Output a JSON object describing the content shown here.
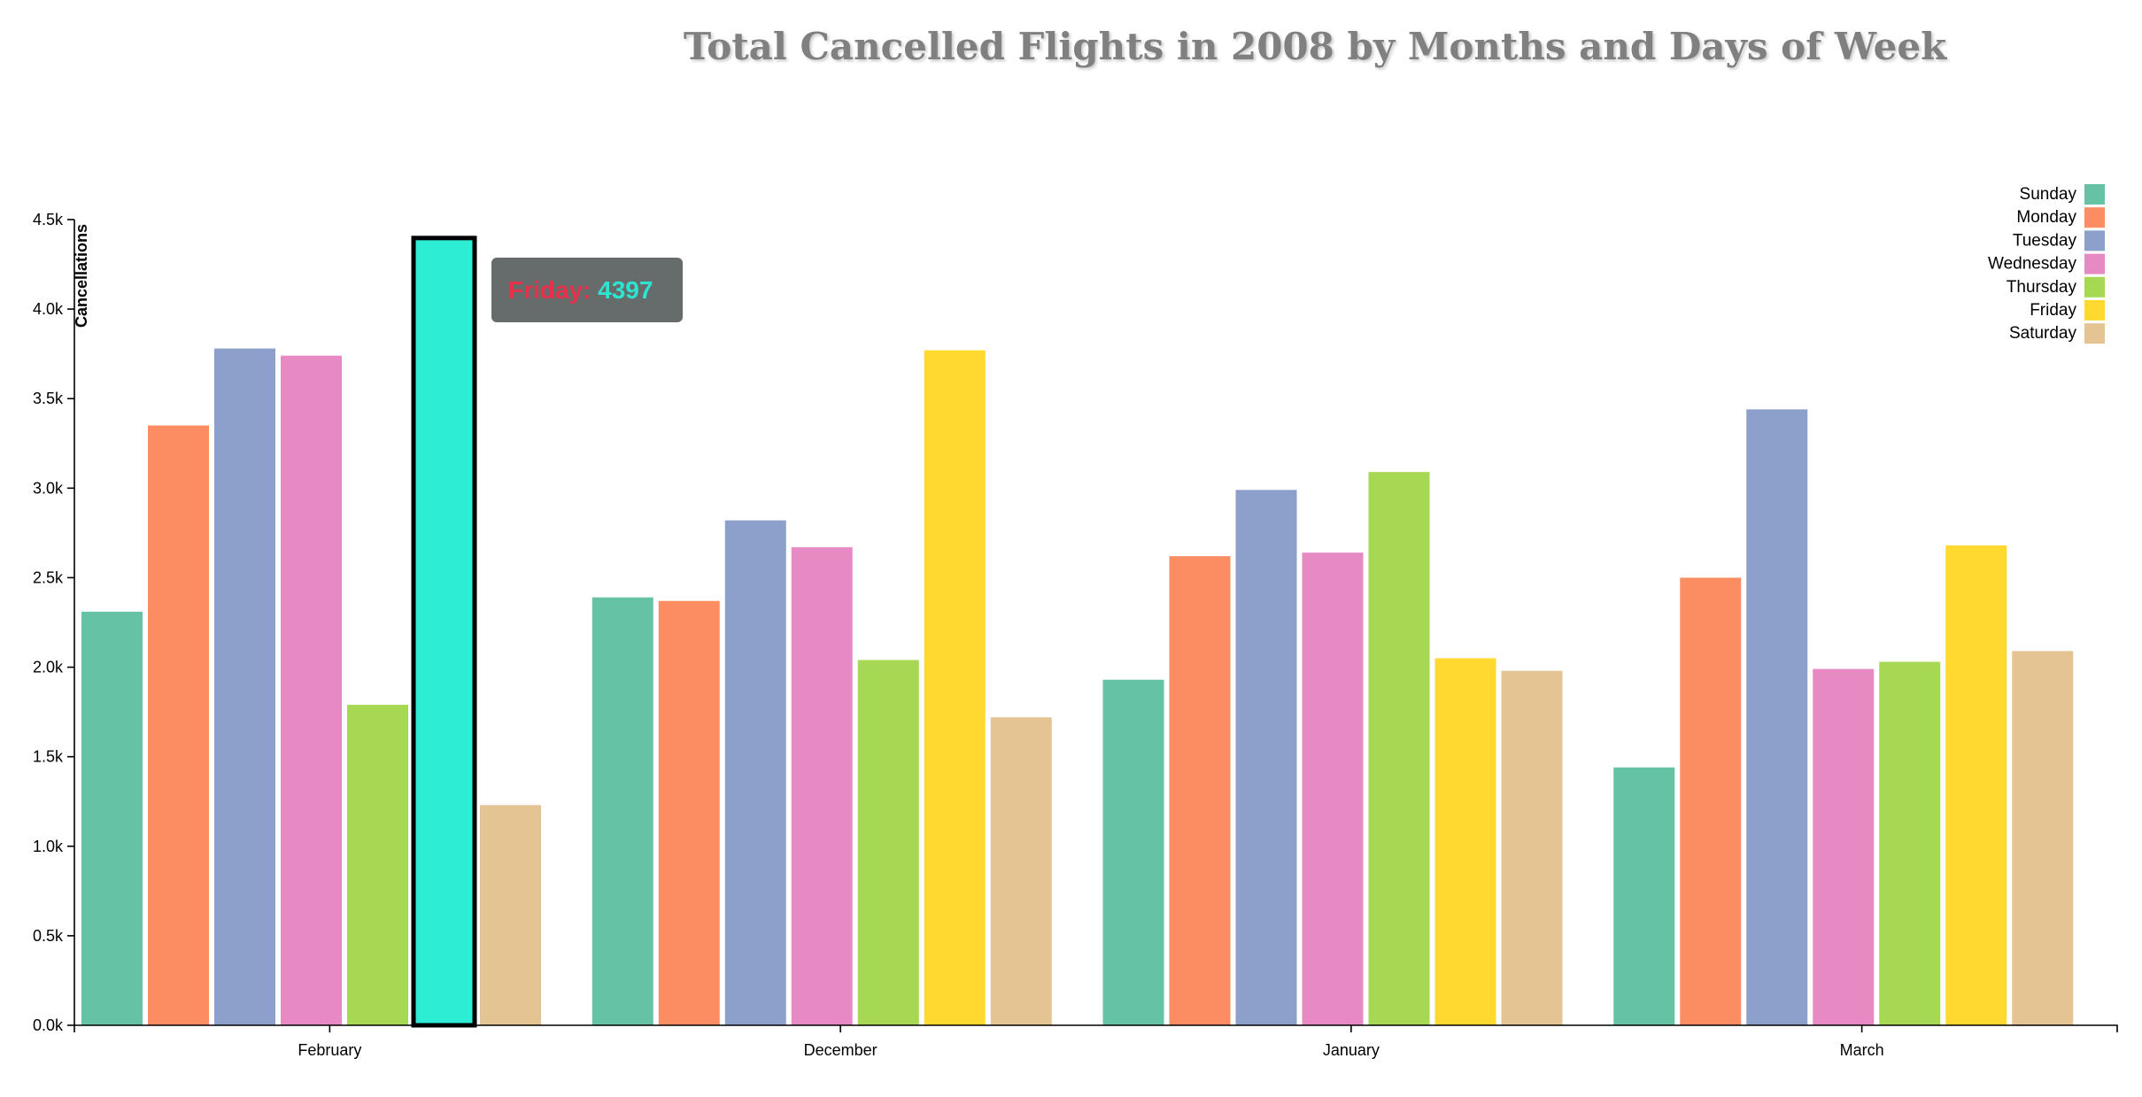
{
  "title": "Total Cancelled Flights in 2008 by Months and Days of Week",
  "chart_data": {
    "type": "bar",
    "title": "Total Cancelled Flights in 2008 by Months and Days of Week",
    "xlabel": "",
    "ylabel": "Cancellations",
    "ylim": [
      0,
      4500
    ],
    "yticks": [
      "0.0k",
      "0.5k",
      "1.0k",
      "1.5k",
      "2.0k",
      "2.5k",
      "3.0k",
      "3.5k",
      "4.0k",
      "4.5k"
    ],
    "categories": [
      "February",
      "December",
      "January",
      "March"
    ],
    "legend_position": "top-right",
    "grid": false,
    "series": [
      {
        "name": "Sunday",
        "color": "#66c2a5",
        "values": [
          2310,
          2390,
          1930,
          1440
        ]
      },
      {
        "name": "Monday",
        "color": "#fc8d62",
        "values": [
          3350,
          2370,
          2620,
          2500
        ]
      },
      {
        "name": "Tuesday",
        "color": "#8da0cb",
        "values": [
          3780,
          2820,
          2990,
          3440
        ]
      },
      {
        "name": "Wednesday",
        "color": "#e78ac3",
        "values": [
          3740,
          2670,
          2640,
          1990
        ]
      },
      {
        "name": "Thursday",
        "color": "#a6d854",
        "values": [
          1790,
          2040,
          3090,
          2030
        ]
      },
      {
        "name": "Friday",
        "color": "#ffd92f",
        "values": [
          4397,
          3770,
          2050,
          2680
        ]
      },
      {
        "name": "Saturday",
        "color": "#e5c494",
        "values": [
          1230,
          1720,
          1980,
          2090
        ]
      }
    ],
    "highlight": {
      "category": "February",
      "series": "Friday",
      "color": "#2deed4"
    }
  },
  "tooltip": {
    "day": "Friday:",
    "value": "4397"
  }
}
